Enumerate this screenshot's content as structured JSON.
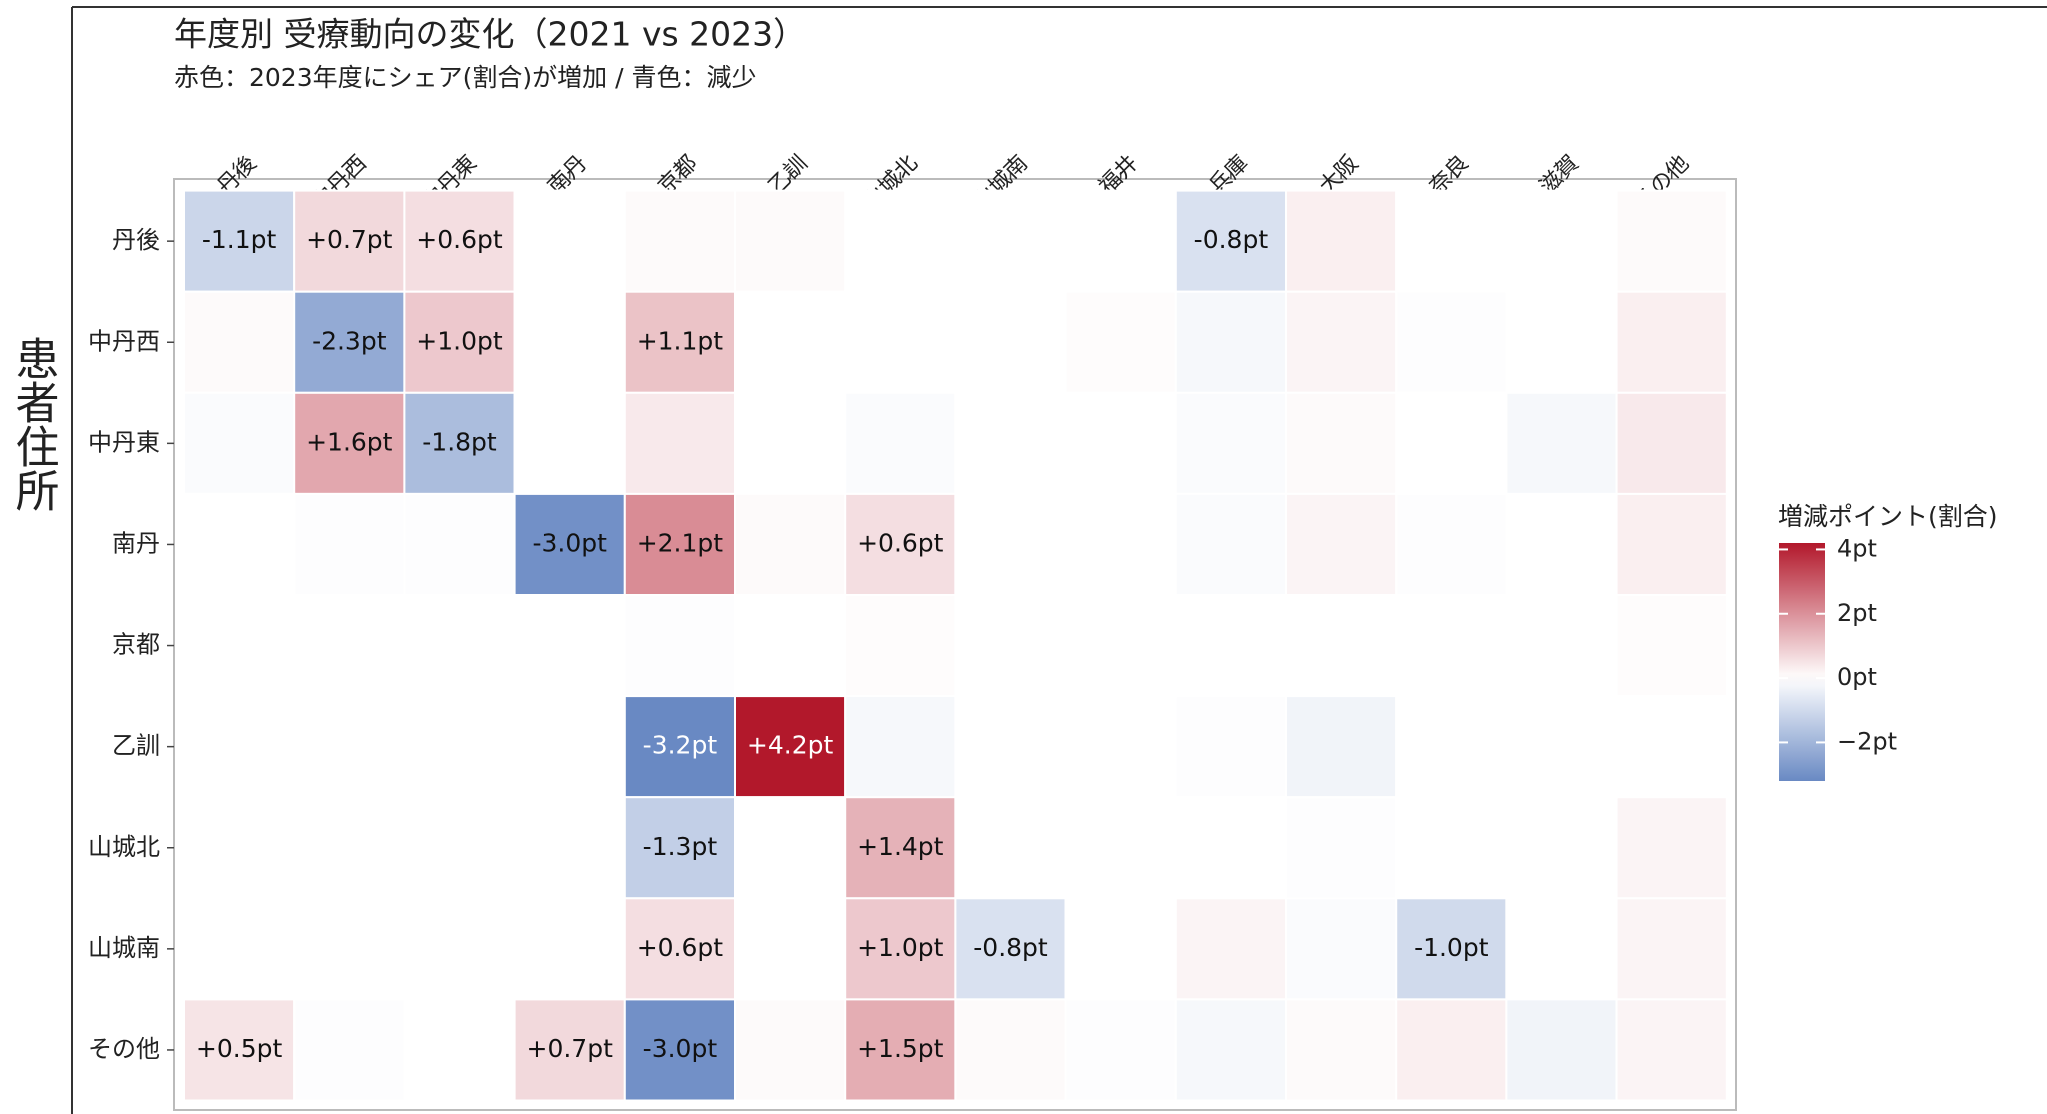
{
  "chart_data": {
    "type": "heatmap",
    "title": "年度別 受療動向の変化（2021 vs 2023）",
    "subtitle": "赤色：2023年度にシェア(割合)が増加 / 青色：減少",
    "y_label": "患者住所",
    "legend_title": "増減ポイント(割合)",
    "categories": [
      "丹後",
      "中丹西",
      "中丹東",
      "南丹",
      "京都",
      "乙訓",
      "山城北",
      "山城南",
      "福井",
      "兵庫",
      "大阪",
      "奈良",
      "滋賀",
      "その他"
    ],
    "rows": [
      "丹後",
      "中丹西",
      "中丹東",
      "南丹",
      "京都",
      "乙訓",
      "山城北",
      "山城南",
      "その他"
    ],
    "values": [
      [
        -1.1,
        0.7,
        0.6,
        0,
        0.1,
        0.1,
        0,
        0,
        0,
        -0.8,
        0.3,
        0,
        0,
        0.1
      ],
      [
        0.1,
        -2.3,
        1.0,
        0,
        1.1,
        0,
        0,
        0,
        0.05,
        -0.2,
        0.2,
        -0.05,
        0,
        0.3
      ],
      [
        -0.1,
        1.6,
        -1.8,
        0,
        0.4,
        0,
        -0.1,
        0,
        0,
        -0.1,
        0.1,
        0,
        -0.2,
        0.4
      ],
      [
        0,
        -0.05,
        -0.05,
        -3.0,
        2.1,
        0.1,
        0.6,
        0,
        0,
        -0.1,
        0.2,
        -0.05,
        0,
        0.3
      ],
      [
        0,
        0,
        0,
        0,
        -0.05,
        0,
        0.05,
        0,
        0,
        0,
        0,
        0,
        0,
        0.05
      ],
      [
        0,
        0,
        0,
        0,
        -3.2,
        4.2,
        -0.2,
        0,
        0,
        -0.05,
        -0.3,
        0,
        0,
        0
      ],
      [
        0,
        0,
        0,
        0,
        -1.3,
        0,
        1.4,
        0,
        0,
        0,
        -0.05,
        0,
        0,
        0.2
      ],
      [
        0,
        0,
        0,
        0,
        0.6,
        0,
        1.0,
        -0.8,
        0,
        0.2,
        -0.1,
        -1.0,
        0,
        0.2
      ],
      [
        0.5,
        -0.05,
        0,
        0.7,
        -3.0,
        0.1,
        1.5,
        0.1,
        -0.05,
        -0.2,
        0.1,
        0.3,
        -0.3,
        0.2
      ]
    ],
    "value_labels": [
      [
        "-1.1pt",
        "+0.7pt",
        "+0.6pt",
        null,
        null,
        null,
        null,
        null,
        null,
        "-0.8pt",
        null,
        null,
        null,
        null
      ],
      [
        null,
        "-2.3pt",
        "+1.0pt",
        null,
        "+1.1pt",
        null,
        null,
        null,
        null,
        null,
        null,
        null,
        null,
        null
      ],
      [
        null,
        "+1.6pt",
        "-1.8pt",
        null,
        null,
        null,
        null,
        null,
        null,
        null,
        null,
        null,
        null,
        null
      ],
      [
        null,
        null,
        null,
        "-3.0pt",
        "+2.1pt",
        null,
        "+0.6pt",
        null,
        null,
        null,
        null,
        null,
        null,
        null
      ],
      [
        null,
        null,
        null,
        null,
        null,
        null,
        null,
        null,
        null,
        null,
        null,
        null,
        null,
        null
      ],
      [
        null,
        null,
        null,
        null,
        "-3.2pt",
        "+4.2pt",
        null,
        null,
        null,
        null,
        null,
        null,
        null,
        null
      ],
      [
        null,
        null,
        null,
        null,
        "-1.3pt",
        null,
        "+1.4pt",
        null,
        null,
        null,
        null,
        null,
        null,
        null
      ],
      [
        null,
        null,
        null,
        null,
        "+0.6pt",
        null,
        "+1.0pt",
        "-0.8pt",
        null,
        null,
        null,
        "-1.0pt",
        null,
        null
      ],
      [
        "+0.5pt",
        null,
        null,
        "+0.7pt",
        "-3.0pt",
        null,
        "+1.5pt",
        null,
        null,
        null,
        null,
        null,
        null,
        null
      ]
    ],
    "clim": [
      -3.2,
      4.2
    ],
    "colorticks": [
      {
        "value": 4,
        "label": "4pt"
      },
      {
        "value": 2,
        "label": "2pt"
      },
      {
        "value": 0,
        "label": "0pt"
      },
      {
        "value": -2,
        "label": "−2pt"
      }
    ],
    "low_color": "#3a64b0",
    "mid_color": "#ffffff",
    "high_color": "#b2182b"
  }
}
